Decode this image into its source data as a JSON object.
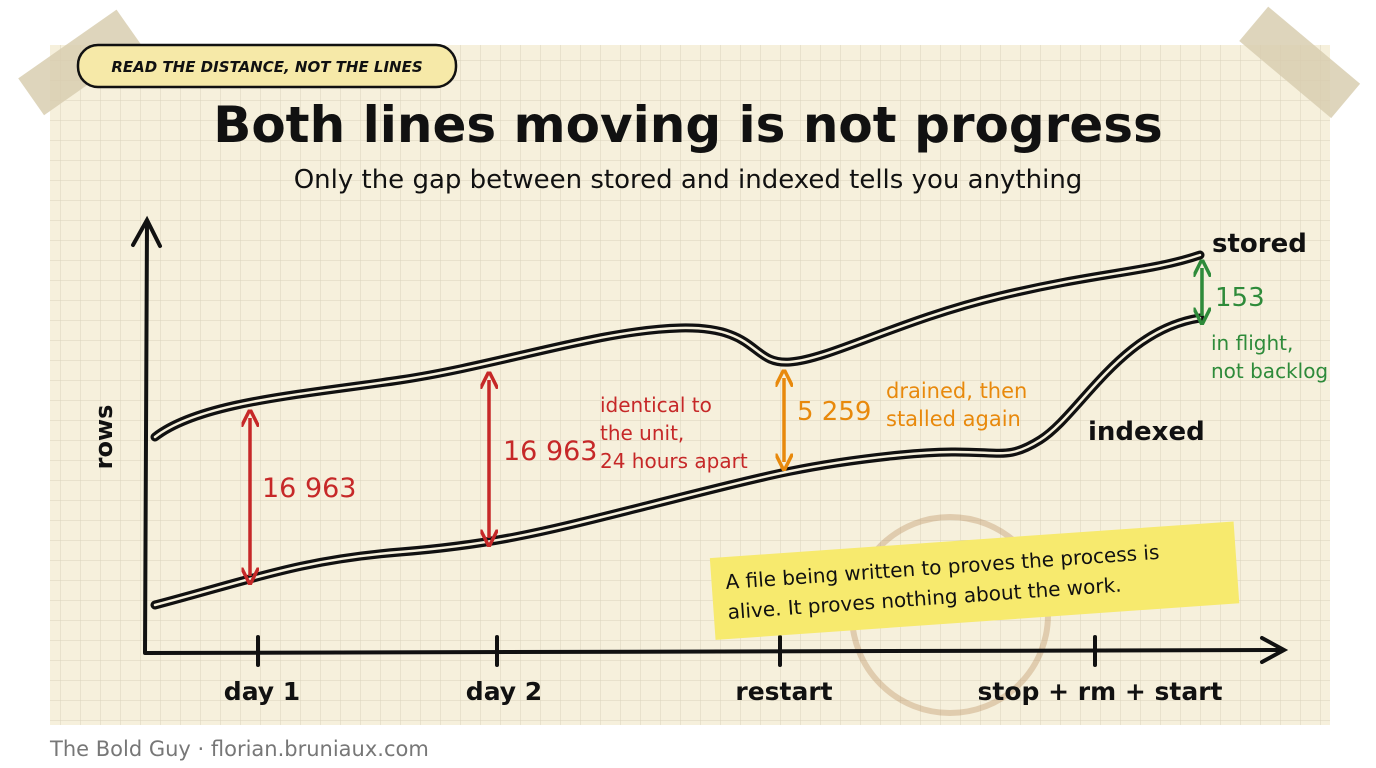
{
  "badge": "READ THE DISTANCE, NOT THE LINES",
  "title": "Both lines moving is not progress",
  "subtitle": "Only the gap between stored and indexed tells you anything",
  "axis": {
    "y_label": "rows"
  },
  "x_markers": [
    "day 1",
    "day 2",
    "restart",
    "stop + rm + start"
  ],
  "lines": [
    "stored",
    "indexed"
  ],
  "gaps": [
    {
      "label": "16 963"
    },
    {
      "label": "16 963",
      "note": [
        "identical to",
        "the unit,",
        "24 hours apart"
      ]
    },
    {
      "label": "5 259",
      "note": [
        "drained, then",
        "stalled again"
      ]
    },
    {
      "label": "153",
      "note": [
        "in flight,",
        "not backlog"
      ]
    }
  ],
  "sticky_note": [
    "A file being written to proves the process is",
    "alive. It proves nothing about the work."
  ],
  "footer": "The Bold Guy · florian.bruniaux.com"
}
